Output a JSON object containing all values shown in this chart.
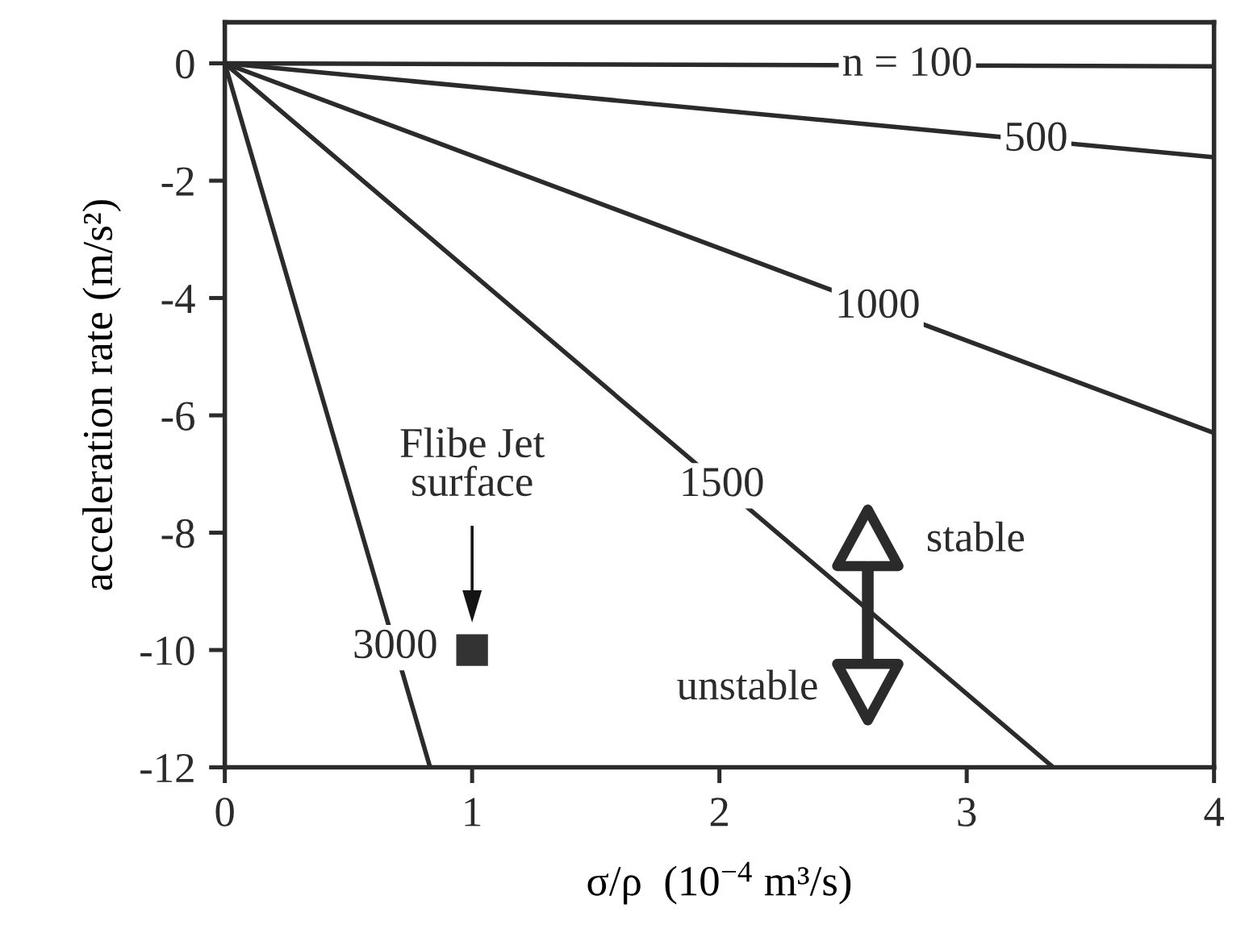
{
  "chart_data": {
    "type": "line",
    "xlabel": "σ/ρ  (10$^{−4}$ m³/s)",
    "ylabel": "acceleration rate (m/s²)",
    "xlim": [
      0,
      4
    ],
    "ylim": [
      -12,
      0.7
    ],
    "xticks": [
      0,
      1,
      2,
      3,
      4
    ],
    "yticks": [
      0,
      -2,
      -4,
      -6,
      -8,
      -10,
      -12
    ],
    "line_style": "solid",
    "series": [
      {
        "name": "n = 100",
        "color": "#2b2b2b",
        "x": [
          0,
          4
        ],
        "values": [
          0,
          -0.05
        ]
      },
      {
        "name": "500",
        "color": "#2b2b2b",
        "x": [
          0,
          4
        ],
        "values": [
          0,
          -1.6
        ]
      },
      {
        "name": "1000",
        "color": "#2b2b2b",
        "x": [
          0,
          4
        ],
        "values": [
          0,
          -6.3
        ]
      },
      {
        "name": "1500",
        "color": "#2b2b2b",
        "x": [
          0,
          3.35
        ],
        "values": [
          0,
          -12
        ]
      },
      {
        "name": "3000",
        "color": "#2b2b2b",
        "x": [
          0,
          0.83
        ],
        "values": [
          0,
          -12
        ]
      },
      {
        "type": "scatter",
        "color": "#333333",
        "marker": "square",
        "x": [
          1
        ],
        "values": [
          -10
        ]
      }
    ],
    "annotations": [
      "Flibe Jet\nsurface",
      "stable",
      "unstable"
    ]
  }
}
